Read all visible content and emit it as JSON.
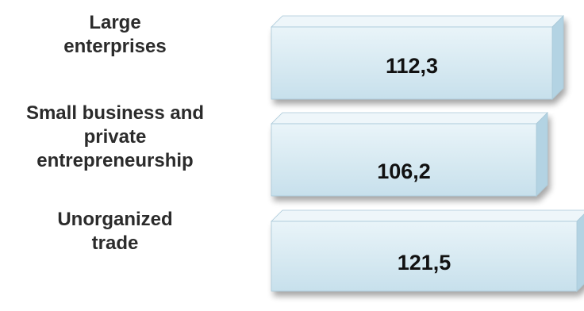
{
  "chart_data": {
    "type": "bar",
    "orientation": "horizontal",
    "categories": [
      [
        "Large",
        "enterprises"
      ],
      [
        "Small business and",
        "private",
        "entrepreneurship"
      ],
      [
        "Unorganized",
        "trade"
      ]
    ],
    "values": [
      112.3,
      106.2,
      121.5
    ],
    "value_labels": [
      "112,3",
      "106,2",
      "121,5"
    ],
    "colors": {
      "bar_face": "#d8eaf2",
      "bar_top": "#eef6fa",
      "bar_side": "#b3d3e3"
    }
  }
}
